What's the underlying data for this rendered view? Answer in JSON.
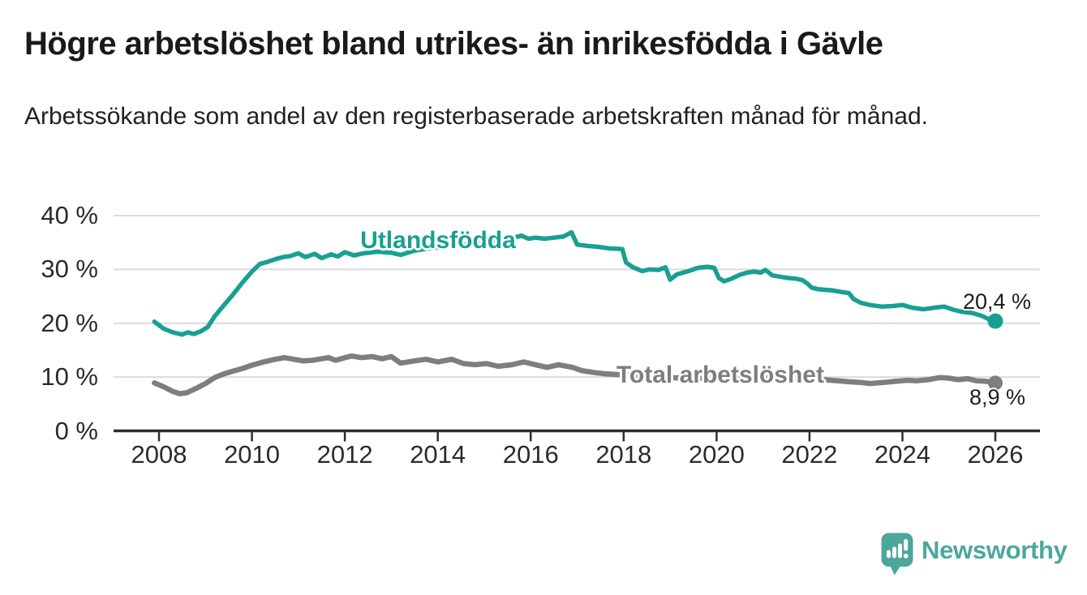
{
  "header": {
    "title": "Högre arbetslöshet bland utrikes- än inrikesfödda i Gävle",
    "subtitle": "Arbetssökande som andel av den registerbaserade arbetskraften månad för månad."
  },
  "footer": {
    "brand": "Newsworthy",
    "brand_color": "#4BA79C"
  },
  "chart_data": {
    "type": "line",
    "title": "Högre arbetslöshet bland utrikes- än inrikesfödda i Gävle",
    "subtitle": "Arbetssökande som andel av den registerbaserade arbetskraften månad för månad.",
    "grid": true,
    "legend_position": "inline-labels",
    "x_axis": {
      "min": 2008,
      "max": 2026,
      "ticks": [
        2008,
        2010,
        2012,
        2014,
        2016,
        2018,
        2020,
        2022,
        2024,
        2026
      ]
    },
    "y_axis": {
      "unit": "%",
      "min": 0,
      "max": 40,
      "ticks": [
        {
          "value": 40,
          "label": "40 %"
        },
        {
          "value": 30,
          "label": "30 %"
        },
        {
          "value": 20,
          "label": "20 %"
        },
        {
          "value": 10,
          "label": "10 %"
        },
        {
          "value": 0,
          "label": "0 %"
        }
      ]
    },
    "style": {
      "grid_color": "#DBDBDB",
      "axis_color": "#2E2E2E",
      "annotation_color": "#1D1D1D",
      "background": "#FFFFFF"
    },
    "series": [
      {
        "name": "Utlandsfödda",
        "color": "#18A092",
        "end_value": 20.4,
        "end_label": "20,4 %",
        "points": [
          [
            2007.9,
            20.3
          ],
          [
            2008.1,
            19.0
          ],
          [
            2008.3,
            18.3
          ],
          [
            2008.5,
            17.9
          ],
          [
            2008.62,
            18.3
          ],
          [
            2008.75,
            18.0
          ],
          [
            2008.9,
            18.5
          ],
          [
            2009.05,
            19.3
          ],
          [
            2009.2,
            21.3
          ],
          [
            2009.4,
            23.4
          ],
          [
            2009.6,
            25.4
          ],
          [
            2009.8,
            27.6
          ],
          [
            2010.0,
            29.6
          ],
          [
            2010.17,
            31.0
          ],
          [
            2010.33,
            31.4
          ],
          [
            2010.5,
            31.9
          ],
          [
            2010.67,
            32.3
          ],
          [
            2010.83,
            32.5
          ],
          [
            2011.0,
            33.0
          ],
          [
            2011.15,
            32.3
          ],
          [
            2011.35,
            32.9
          ],
          [
            2011.5,
            32.1
          ],
          [
            2011.7,
            32.8
          ],
          [
            2011.85,
            32.4
          ],
          [
            2012.0,
            33.2
          ],
          [
            2012.2,
            32.6
          ],
          [
            2012.4,
            33.0
          ],
          [
            2012.7,
            33.3
          ],
          [
            2013.0,
            33.1
          ],
          [
            2013.2,
            32.7
          ],
          [
            2013.5,
            33.5
          ],
          [
            2013.8,
            33.9
          ],
          [
            2014.1,
            34.2
          ],
          [
            2014.5,
            34.6
          ],
          [
            2014.9,
            35.0
          ],
          [
            2015.3,
            35.4
          ],
          [
            2015.6,
            35.8
          ],
          [
            2015.8,
            36.3
          ],
          [
            2015.95,
            35.7
          ],
          [
            2016.1,
            35.9
          ],
          [
            2016.3,
            35.7
          ],
          [
            2016.5,
            35.9
          ],
          [
            2016.7,
            36.1
          ],
          [
            2016.88,
            36.9
          ],
          [
            2017.0,
            34.6
          ],
          [
            2017.2,
            34.4
          ],
          [
            2017.45,
            34.2
          ],
          [
            2017.7,
            33.9
          ],
          [
            2017.97,
            33.8
          ],
          [
            2018.05,
            31.3
          ],
          [
            2018.2,
            30.4
          ],
          [
            2018.4,
            29.7
          ],
          [
            2018.55,
            30.0
          ],
          [
            2018.75,
            29.9
          ],
          [
            2018.9,
            30.4
          ],
          [
            2019.0,
            28.1
          ],
          [
            2019.15,
            29.1
          ],
          [
            2019.4,
            29.7
          ],
          [
            2019.6,
            30.3
          ],
          [
            2019.8,
            30.5
          ],
          [
            2019.95,
            30.3
          ],
          [
            2020.05,
            28.4
          ],
          [
            2020.16,
            27.8
          ],
          [
            2020.3,
            28.2
          ],
          [
            2020.5,
            29.0
          ],
          [
            2020.65,
            29.4
          ],
          [
            2020.8,
            29.6
          ],
          [
            2020.95,
            29.4
          ],
          [
            2021.05,
            29.9
          ],
          [
            2021.2,
            28.9
          ],
          [
            2021.4,
            28.6
          ],
          [
            2021.55,
            28.4
          ],
          [
            2021.7,
            28.3
          ],
          [
            2021.85,
            28.0
          ],
          [
            2021.95,
            27.4
          ],
          [
            2022.05,
            26.6
          ],
          [
            2022.2,
            26.3
          ],
          [
            2022.5,
            26.1
          ],
          [
            2022.7,
            25.8
          ],
          [
            2022.85,
            25.6
          ],
          [
            2022.95,
            24.5
          ],
          [
            2023.1,
            23.8
          ],
          [
            2023.3,
            23.4
          ],
          [
            2023.55,
            23.1
          ],
          [
            2023.8,
            23.2
          ],
          [
            2024.0,
            23.4
          ],
          [
            2024.2,
            22.9
          ],
          [
            2024.45,
            22.6
          ],
          [
            2024.7,
            22.9
          ],
          [
            2024.9,
            23.1
          ],
          [
            2025.1,
            22.5
          ],
          [
            2025.3,
            22.1
          ],
          [
            2025.5,
            21.9
          ],
          [
            2025.7,
            21.4
          ],
          [
            2025.85,
            20.8
          ],
          [
            2026.0,
            20.4
          ]
        ]
      },
      {
        "name": "Total arbetslöshet",
        "color": "#7E7E7E",
        "end_value": 8.9,
        "end_label": "8,9 %",
        "points": [
          [
            2007.9,
            8.9
          ],
          [
            2008.1,
            8.2
          ],
          [
            2008.3,
            7.3
          ],
          [
            2008.45,
            6.9
          ],
          [
            2008.6,
            7.1
          ],
          [
            2008.8,
            7.9
          ],
          [
            2009.0,
            8.8
          ],
          [
            2009.2,
            9.9
          ],
          [
            2009.4,
            10.6
          ],
          [
            2009.6,
            11.1
          ],
          [
            2009.8,
            11.6
          ],
          [
            2010.0,
            12.2
          ],
          [
            2010.2,
            12.7
          ],
          [
            2010.5,
            13.3
          ],
          [
            2010.7,
            13.6
          ],
          [
            2010.9,
            13.3
          ],
          [
            2011.1,
            13.0
          ],
          [
            2011.3,
            13.1
          ],
          [
            2011.5,
            13.4
          ],
          [
            2011.65,
            13.6
          ],
          [
            2011.8,
            13.1
          ],
          [
            2012.0,
            13.6
          ],
          [
            2012.15,
            13.9
          ],
          [
            2012.35,
            13.6
          ],
          [
            2012.6,
            13.8
          ],
          [
            2012.8,
            13.4
          ],
          [
            2013.0,
            13.8
          ],
          [
            2013.2,
            12.6
          ],
          [
            2013.5,
            13.0
          ],
          [
            2013.75,
            13.3
          ],
          [
            2014.0,
            12.8
          ],
          [
            2014.3,
            13.3
          ],
          [
            2014.55,
            12.5
          ],
          [
            2014.8,
            12.3
          ],
          [
            2015.05,
            12.5
          ],
          [
            2015.3,
            12.0
          ],
          [
            2015.6,
            12.3
          ],
          [
            2015.85,
            12.8
          ],
          [
            2016.1,
            12.3
          ],
          [
            2016.35,
            11.8
          ],
          [
            2016.6,
            12.3
          ],
          [
            2016.9,
            11.8
          ],
          [
            2017.1,
            11.2
          ],
          [
            2017.4,
            10.8
          ],
          [
            2017.6,
            10.6
          ],
          [
            2018.0,
            10.4
          ],
          [
            2018.5,
            10.2
          ],
          [
            2019.0,
            9.9
          ],
          [
            2019.5,
            9.7
          ],
          [
            2020.0,
            9.9
          ],
          [
            2020.5,
            10.1
          ],
          [
            2021.0,
            9.9
          ],
          [
            2021.5,
            9.7
          ],
          [
            2022.0,
            9.6
          ],
          [
            2022.3,
            9.5
          ],
          [
            2022.6,
            9.3
          ],
          [
            2022.9,
            9.1
          ],
          [
            2023.1,
            9.0
          ],
          [
            2023.3,
            8.8
          ],
          [
            2023.6,
            9.0
          ],
          [
            2023.85,
            9.2
          ],
          [
            2024.1,
            9.4
          ],
          [
            2024.3,
            9.3
          ],
          [
            2024.55,
            9.5
          ],
          [
            2024.8,
            9.9
          ],
          [
            2025.0,
            9.8
          ],
          [
            2025.2,
            9.5
          ],
          [
            2025.4,
            9.7
          ],
          [
            2025.6,
            9.3
          ],
          [
            2025.8,
            9.2
          ],
          [
            2026.0,
            8.9
          ]
        ]
      }
    ]
  }
}
